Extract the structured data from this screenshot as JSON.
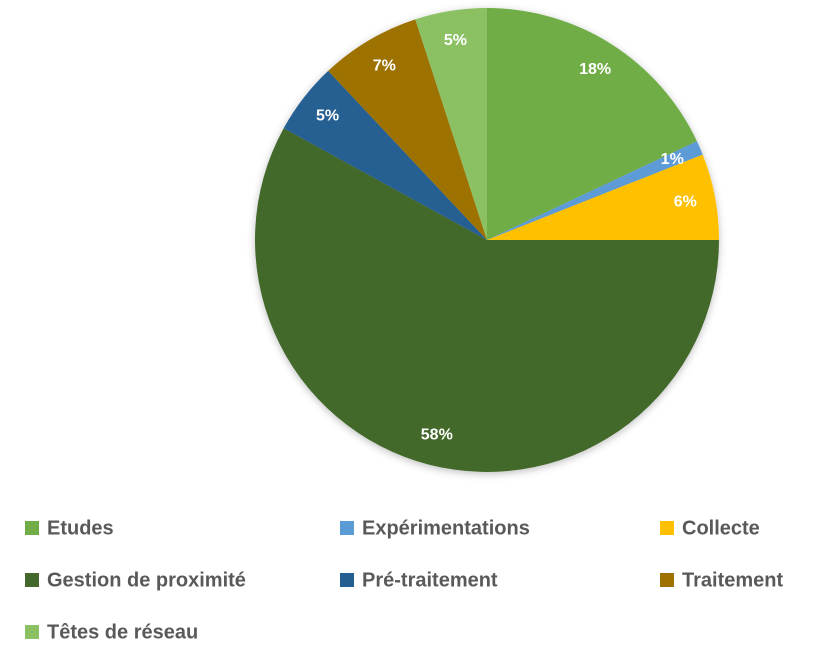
{
  "chart_data": {
    "type": "pie",
    "categories": [
      "Etudes",
      "Expérimentations",
      "Collecte",
      "Gestion de proximité",
      "Pré-traitement",
      "Traitement",
      "Têtes de réseau"
    ],
    "values": [
      18,
      1,
      6,
      58,
      5,
      7,
      5
    ],
    "colors": [
      "#70ad47",
      "#5b9bd5",
      "#ffc000",
      "#43682b",
      "#255e91",
      "#9e7200",
      "#8bc163"
    ],
    "value_labels": [
      "18%",
      "1%",
      "6%",
      "58%",
      "5%",
      "7%",
      "5%"
    ]
  }
}
